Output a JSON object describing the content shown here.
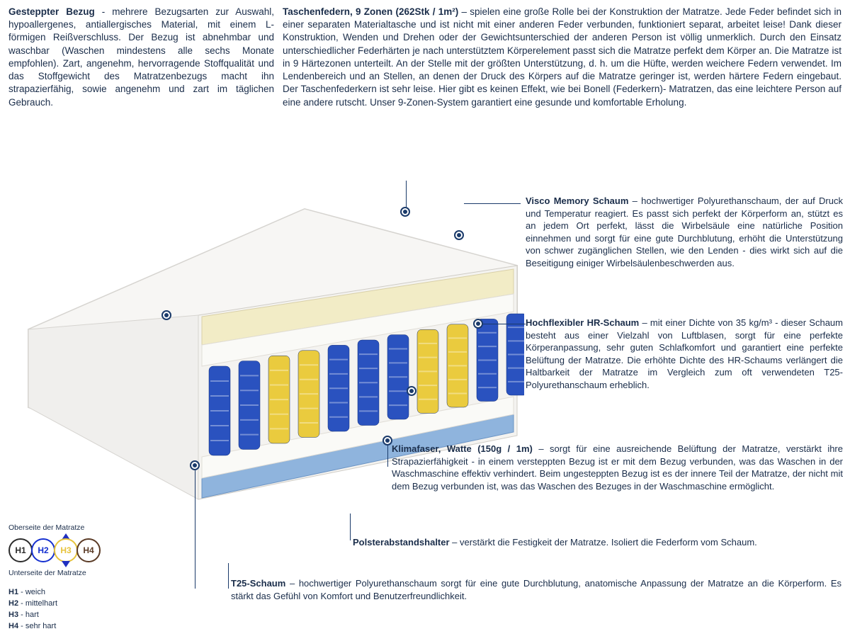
{
  "top": {
    "left_title": "Gesteppter Bezug",
    "left_body": " - mehrere Bezugsarten zur Auswahl, hypoallergenes, antiallergisches Material, mit einem L-förmigen Reißverschluss. Der Bezug ist abnehmbar und waschbar (Waschen mindestens alle sechs Monate empfohlen). Zart, angenehm, hervorragende Stoffqualität und das Stoffgewicht des Matratzenbezugs macht ihn strapazierfähig, sowie angenehm und zart im täglichen Gebrauch.",
    "right_title": "Taschenfedern, 9 Zonen (262Stk / 1m²)",
    "right_body": " – spielen eine große Rolle bei der Konstruktion der Matratze. Jede Feder befindet sich in einer separaten Materialtasche und ist nicht mit einer anderen Feder verbunden, funktioniert separat, arbeitet leise! Dank dieser Konstruktion, Wenden und Drehen oder der Gewichtsunterschied der anderen Person ist völlig unmerklich. Durch den Einsatz unterschiedlicher Federhärten je nach unterstütztem Körperelement passt sich die Matratze perfekt dem Körper an. Die Matratze ist in 9 Härtezonen unterteilt. An der Stelle mit der größten Unterstützung, d. h. um die Hüfte, werden weichere Federn verwendet. Im Lendenbereich und an Stellen, an denen der Druck des Körpers auf die Matratze geringer ist, werden härtere Federn eingebaut. Der Taschenfederkern ist sehr leise. Hier gibt es keinen Effekt, wie bei Bonell (Federkern)- Matratzen, das eine leichtere Person auf eine andere rutscht. Unser 9-Zonen-System garantiert eine gesunde und komfortable Erholung."
  },
  "callouts": {
    "visco": {
      "title": "Visco Memory Schaum",
      "body": " – hochwertiger Polyurethanschaum, der auf Druck und Temperatur reagiert. Es passt sich perfekt der Körperform an, stützt es an jedem Ort perfekt, lässt die Wirbelsäule eine natürliche Position einnehmen und sorgt für eine gute Durchblutung, erhöht die Unterstützung von schwer zugänglichen Stellen, wie den Lenden - dies wirkt sich auf die Beseitigung einiger Wirbelsäulenbeschwerden aus."
    },
    "hr": {
      "title": "Hochflexibler HR-Schaum",
      "body": " – mit einer Dichte von 35 kg/m³ - dieser Schaum besteht aus einer Vielzahl von Luftblasen, sorgt für eine perfekte Körperanpassung, sehr guten Schlafkomfort und garantiert eine perfekte Belüftung der Matratze. Die erhöhte Dichte des HR-Schaums verlängert die Haltbarkeit der Matratze im Vergleich zum oft verwendeten T25-Polyurethanschaum erheblich."
    },
    "klima": {
      "title": "Klimafaser, Watte (150g / 1m)",
      "body": " – sorgt für eine ausreichende Belüftung der Matratze, verstärkt ihre Strapazierfähigkeit - in einem versteppten Bezug ist er mit dem Bezug verbunden, was das Waschen in der Waschmaschine effektiv verhindert. Beim ungesteppten Bezug ist es der innere Teil der Matratze, der nicht mit dem Bezug verbunden ist, was das Waschen des Bezuges in der Waschmaschine ermöglicht."
    },
    "polster": {
      "title": "Polsterabstandshalter",
      "body": " – verstärkt die Festigkeit der Matratze. Isoliert die Federform vom Schaum."
    },
    "t25": {
      "title": "T25-Schaum",
      "body": " – hochwertiger Polyurethanschaum sorgt für eine gute Durchblutung, anatomische Anpassung der Matratze an die Körperform. Es stärkt das Gefühl von Komfort und Benutzerfreundlichkeit."
    }
  },
  "legend": {
    "topLabel": "Oberseite der Matratze",
    "botLabel": "Unterseite der Matratze",
    "circles": [
      {
        "label": "H1",
        "color": "#2b2b2b"
      },
      {
        "label": "H2",
        "color": "#1530d0"
      },
      {
        "label": "H3",
        "color": "#e7c33a"
      },
      {
        "label": "H4",
        "color": "#5a3a25"
      }
    ],
    "keys": [
      {
        "code": "H1",
        "text": " - weich"
      },
      {
        "code": "H2",
        "text": " - mittelhart"
      },
      {
        "code": "H3",
        "text": " - hart"
      },
      {
        "code": "H4",
        "text": " - sehr hart"
      }
    ]
  },
  "mattress_svg": {
    "cover_fill": "#f0efed",
    "cover_stroke": "#d6d4d0",
    "foam_cream": "#f2ecc6",
    "foam_white": "#fafaf7",
    "base_blue": "#8fb4dd",
    "base_fill": "#f4f3f0",
    "spring_colors": [
      "#2a52bf",
      "#2a52bf",
      "#eacb3e",
      "#eacb3e",
      "#2a52bf",
      "#2a52bf",
      "#2a52bf",
      "#eacb3e",
      "#eacb3e",
      "#2a52bf",
      "#2a52bf"
    ]
  }
}
